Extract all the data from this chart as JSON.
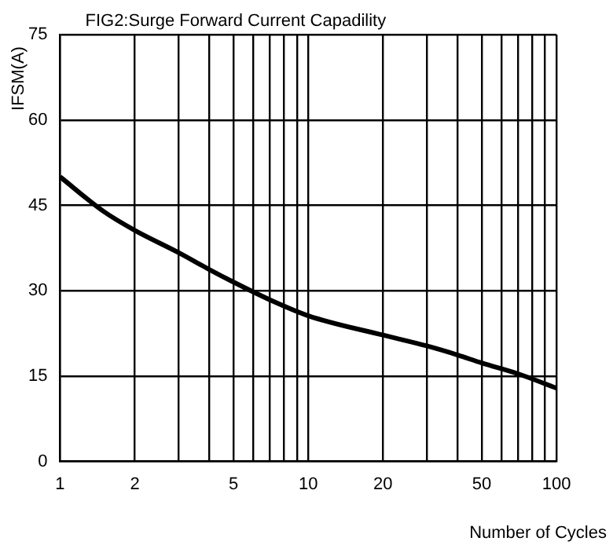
{
  "chart_data": {
    "type": "line",
    "title": "FIG2:Surge Forward Current Capadility",
    "xlabel": "Number of Cycles",
    "ylabel": "IFSM(A)",
    "log": "x",
    "x": [
      1,
      1.5,
      2,
      3,
      4,
      5,
      7,
      10,
      20,
      30,
      40,
      50,
      70,
      100
    ],
    "series": [
      {
        "color": "#000000",
        "values": [
          50,
          43.9,
          40.6,
          36.7,
          33.7,
          31.5,
          28.4,
          25.6,
          22.2,
          20.3,
          18.7,
          17.3,
          15.4,
          12.9
        ]
      }
    ],
    "xlim": [
      1,
      100
    ],
    "xticks": [
      1,
      2,
      {
        "value": 3,
        "label": null
      },
      {
        "value": 4,
        "label": null
      },
      5,
      {
        "value": 6,
        "label": null
      },
      {
        "value": 7,
        "label": null
      },
      {
        "value": 8,
        "label": null
      },
      {
        "value": 9,
        "label": null
      },
      10,
      20,
      {
        "value": 30,
        "label": null
      },
      {
        "value": 40,
        "label": null
      },
      50,
      {
        "value": 60,
        "label": null
      },
      {
        "value": 70,
        "label": null
      },
      {
        "value": 80,
        "label": null
      },
      {
        "value": 90,
        "label": null
      },
      100
    ],
    "ylim": [
      0,
      75
    ],
    "yticks": [
      0,
      15,
      30,
      45,
      60,
      75
    ],
    "grid": true,
    "legend": false,
    "marker": "none",
    "line_style": "solid"
  }
}
